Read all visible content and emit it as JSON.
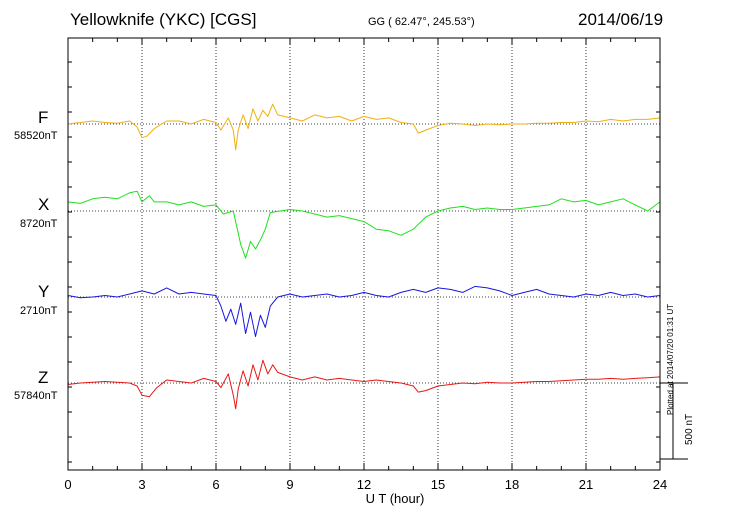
{
  "header": {
    "station": "Yellowknife (YKC)  [CGS]",
    "coords": "GG ( 62.47°, 245.53°)",
    "date": "2014/06/19"
  },
  "footer": {
    "plotted": "Plotted at 2014/07/20 01:31  UT",
    "scale_label": "500 nT"
  },
  "chart_data": {
    "type": "line",
    "xlabel": "U T (hour)",
    "xlim": [
      0,
      24
    ],
    "xticks": [
      "0",
      "3",
      "6",
      "9",
      "12",
      "15",
      "18",
      "21",
      "24"
    ],
    "scale_bar_nT": 500,
    "grid": true,
    "series": [
      {
        "name": "F",
        "baseline": "58520nT",
        "color": "#f0b010",
        "x": [
          0,
          0.5,
          1,
          1.5,
          2,
          2.5,
          2.8,
          3.0,
          3.2,
          3.5,
          4,
          4.5,
          5,
          5.5,
          6,
          6.2,
          6.5,
          6.7,
          6.8,
          6.9,
          7.1,
          7.3,
          7.5,
          7.7,
          7.9,
          8.1,
          8.3,
          8.5,
          9,
          9.5,
          10,
          10.5,
          11,
          11.5,
          12,
          12.5,
          13,
          13.5,
          14,
          14.2,
          14.5,
          15,
          15.5,
          16,
          16.5,
          17,
          17.5,
          18,
          18.5,
          19,
          19.5,
          20,
          20.5,
          21,
          21.5,
          22,
          22.5,
          23,
          23.5,
          24
        ],
        "y": [
          0,
          10,
          20,
          10,
          5,
          20,
          -20,
          -90,
          -80,
          -30,
          20,
          20,
          0,
          30,
          10,
          -40,
          40,
          -40,
          -170,
          -40,
          60,
          -30,
          100,
          20,
          90,
          50,
          130,
          60,
          40,
          20,
          60,
          40,
          50,
          20,
          50,
          30,
          40,
          10,
          0,
          -60,
          -40,
          -10,
          5,
          0,
          -10,
          0,
          -5,
          0,
          0,
          5,
          5,
          10,
          10,
          20,
          15,
          30,
          20,
          30,
          30,
          40
        ]
      },
      {
        "name": "X",
        "baseline": "8720nT",
        "color": "#20e020",
        "x": [
          0,
          0.5,
          1,
          1.5,
          2,
          2.5,
          2.8,
          3.0,
          3.3,
          3.5,
          4,
          4.5,
          5,
          5.5,
          6,
          6.3,
          6.7,
          7.0,
          7.2,
          7.4,
          7.6,
          7.8,
          8,
          8.2,
          8.6,
          9,
          9.5,
          10,
          10.5,
          11,
          11.5,
          12,
          12.5,
          13,
          13.5,
          14,
          14.5,
          15,
          15.5,
          16,
          16.5,
          17,
          17.5,
          18,
          18.5,
          19,
          19.5,
          20,
          20.5,
          21,
          21.5,
          22,
          22.5,
          23,
          23.5,
          24
        ],
        "y": [
          60,
          50,
          80,
          90,
          80,
          120,
          130,
          60,
          100,
          60,
          60,
          40,
          60,
          30,
          40,
          -20,
          0,
          -220,
          -310,
          -200,
          -250,
          -190,
          -120,
          -10,
          0,
          10,
          0,
          -20,
          -40,
          -30,
          -50,
          -70,
          -120,
          -130,
          -160,
          -120,
          -40,
          0,
          20,
          30,
          10,
          20,
          10,
          10,
          20,
          30,
          40,
          80,
          60,
          70,
          40,
          60,
          80,
          40,
          0,
          60
        ]
      },
      {
        "name": "Y",
        "baseline": "2710nT",
        "color": "#1818e0",
        "x": [
          0,
          0.5,
          1,
          1.5,
          2,
          2.5,
          3,
          3.5,
          4,
          4.5,
          5,
          5.5,
          6,
          6.2,
          6.4,
          6.6,
          6.8,
          7.0,
          7.2,
          7.4,
          7.6,
          7.8,
          8.0,
          8.2,
          8.5,
          9,
          9.5,
          10,
          10.5,
          11,
          11.5,
          12,
          12.5,
          13,
          13.5,
          14,
          14.5,
          15,
          15.5,
          16,
          16.5,
          17,
          17.5,
          18,
          18.5,
          19,
          19.5,
          20,
          20.5,
          21,
          21.5,
          22,
          22.5,
          23,
          23.5,
          24
        ],
        "y": [
          10,
          -5,
          0,
          10,
          0,
          20,
          40,
          20,
          60,
          20,
          30,
          20,
          10,
          -60,
          -160,
          -80,
          -180,
          -40,
          -240,
          -100,
          -260,
          -120,
          -200,
          -60,
          0,
          20,
          0,
          10,
          20,
          0,
          10,
          30,
          10,
          0,
          30,
          50,
          30,
          60,
          50,
          30,
          70,
          60,
          40,
          10,
          30,
          50,
          20,
          10,
          0,
          20,
          10,
          30,
          10,
          20,
          0,
          10
        ]
      },
      {
        "name": "Z",
        "baseline": "57840nT",
        "color": "#e81818",
        "x": [
          0,
          0.5,
          1,
          1.5,
          2,
          2.5,
          2.8,
          3.0,
          3.3,
          3.6,
          4,
          4.5,
          5,
          5.5,
          6,
          6.2,
          6.5,
          6.7,
          6.8,
          6.9,
          7.1,
          7.3,
          7.5,
          7.7,
          7.9,
          8.1,
          8.3,
          8.5,
          9,
          9.5,
          10,
          10.5,
          11,
          11.5,
          12,
          12.5,
          13,
          13.5,
          14,
          14.2,
          14.5,
          15,
          15.5,
          16,
          16.5,
          17,
          17.5,
          18,
          18.5,
          19,
          19.5,
          20,
          20.5,
          21,
          21.5,
          22,
          22.5,
          23,
          23.5,
          24
        ],
        "y": [
          -10,
          0,
          5,
          10,
          5,
          0,
          -20,
          -80,
          -90,
          -30,
          20,
          10,
          0,
          30,
          10,
          -30,
          60,
          -80,
          -170,
          -40,
          80,
          -20,
          120,
          20,
          150,
          60,
          120,
          70,
          40,
          20,
          40,
          20,
          30,
          20,
          10,
          20,
          10,
          0,
          -20,
          -60,
          -50,
          -20,
          -10,
          0,
          -5,
          5,
          0,
          0,
          5,
          10,
          10,
          15,
          20,
          25,
          25,
          30,
          25,
          30,
          35,
          40
        ]
      }
    ]
  }
}
